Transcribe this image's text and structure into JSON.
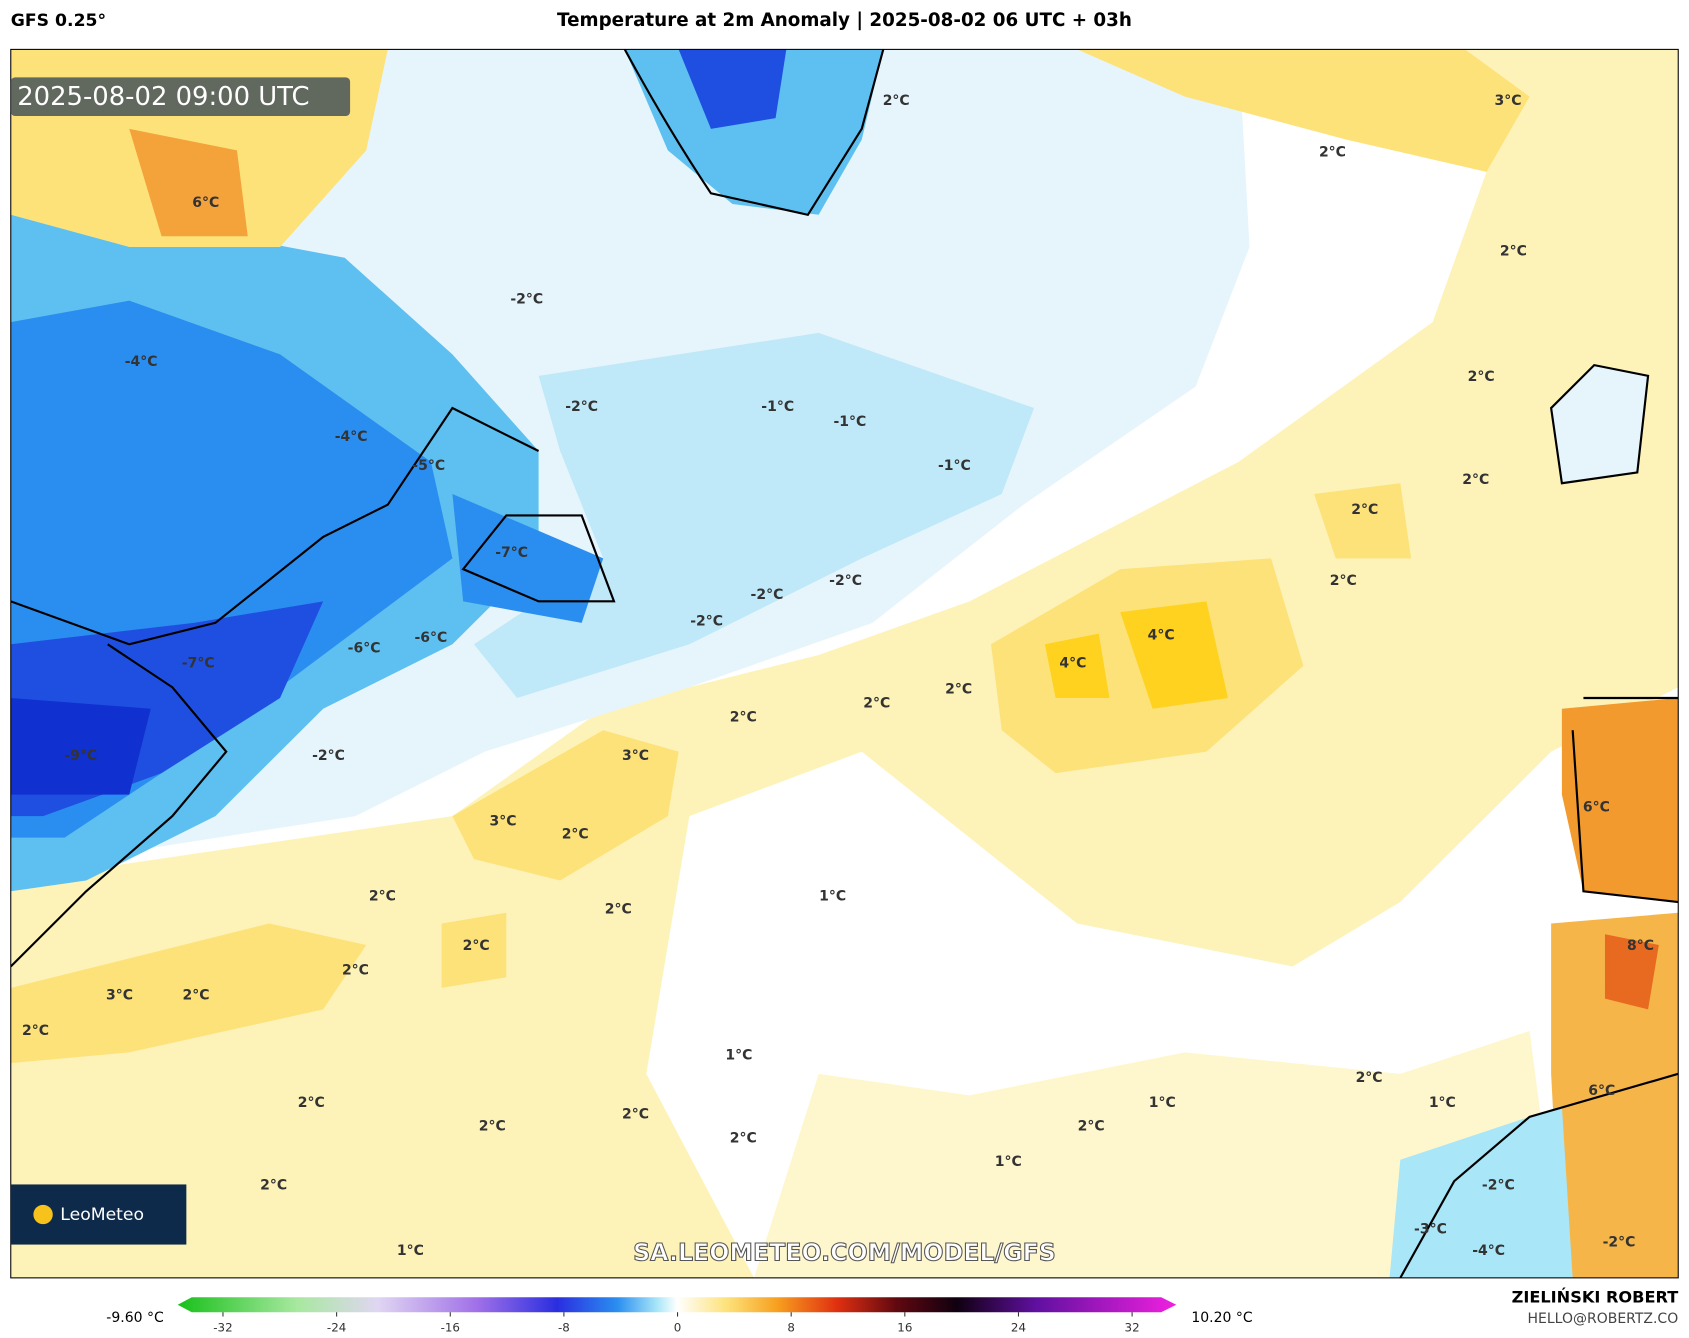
{
  "header": {
    "model": "GFS 0.25°",
    "title": "Temperature at 2m Anomaly | 2025-08-02 06 UTC + 03h"
  },
  "map": {
    "valid_time": "2025-08-02 09:00 UTC",
    "watermark": "SA.LEOMETEO.COM/MODEL/GFS",
    "logo": "LeoMeteo",
    "labels": [
      "2°C",
      "3°C",
      "2°C",
      "2°C",
      "6°C",
      "-2°C",
      "-4°C",
      "2°C",
      "-2°C",
      "-1°C",
      "-1°C",
      "-4°C",
      "-5°C",
      "-1°C",
      "2°C",
      "2°C",
      "-7°C",
      "2°C",
      "-2°C",
      "-2°C",
      "-2°C",
      "4°C",
      "4°C",
      "-6°C",
      "-6°C",
      "-7°C",
      "2°C",
      "2°C",
      "2°C",
      "-9°C",
      "-2°C",
      "3°C",
      "6°C",
      "3°C",
      "2°C",
      "1°C",
      "2°C",
      "2°C",
      "2°C",
      "8°C",
      "2°C",
      "3°C",
      "2°C",
      "2°C",
      "1°C",
      "2°C",
      "6°C",
      "2°C",
      "1°C",
      "1°C",
      "2°C",
      "2°C",
      "2°C",
      "2°C",
      "1°C",
      "2°C",
      "-2°C",
      "-3°C",
      "-4°C",
      "-2°C",
      "1°C"
    ]
  },
  "colorbar": {
    "min_label": "-9.60 °C",
    "max_label": "10.20 °C",
    "ticks": [
      -32,
      -24,
      -16,
      -8,
      0,
      8,
      16,
      24,
      32
    ]
  },
  "footer": {
    "author": "ZIELIŃSKI ROBERT",
    "email": "HELLO@ROBERTZ.CO"
  }
}
